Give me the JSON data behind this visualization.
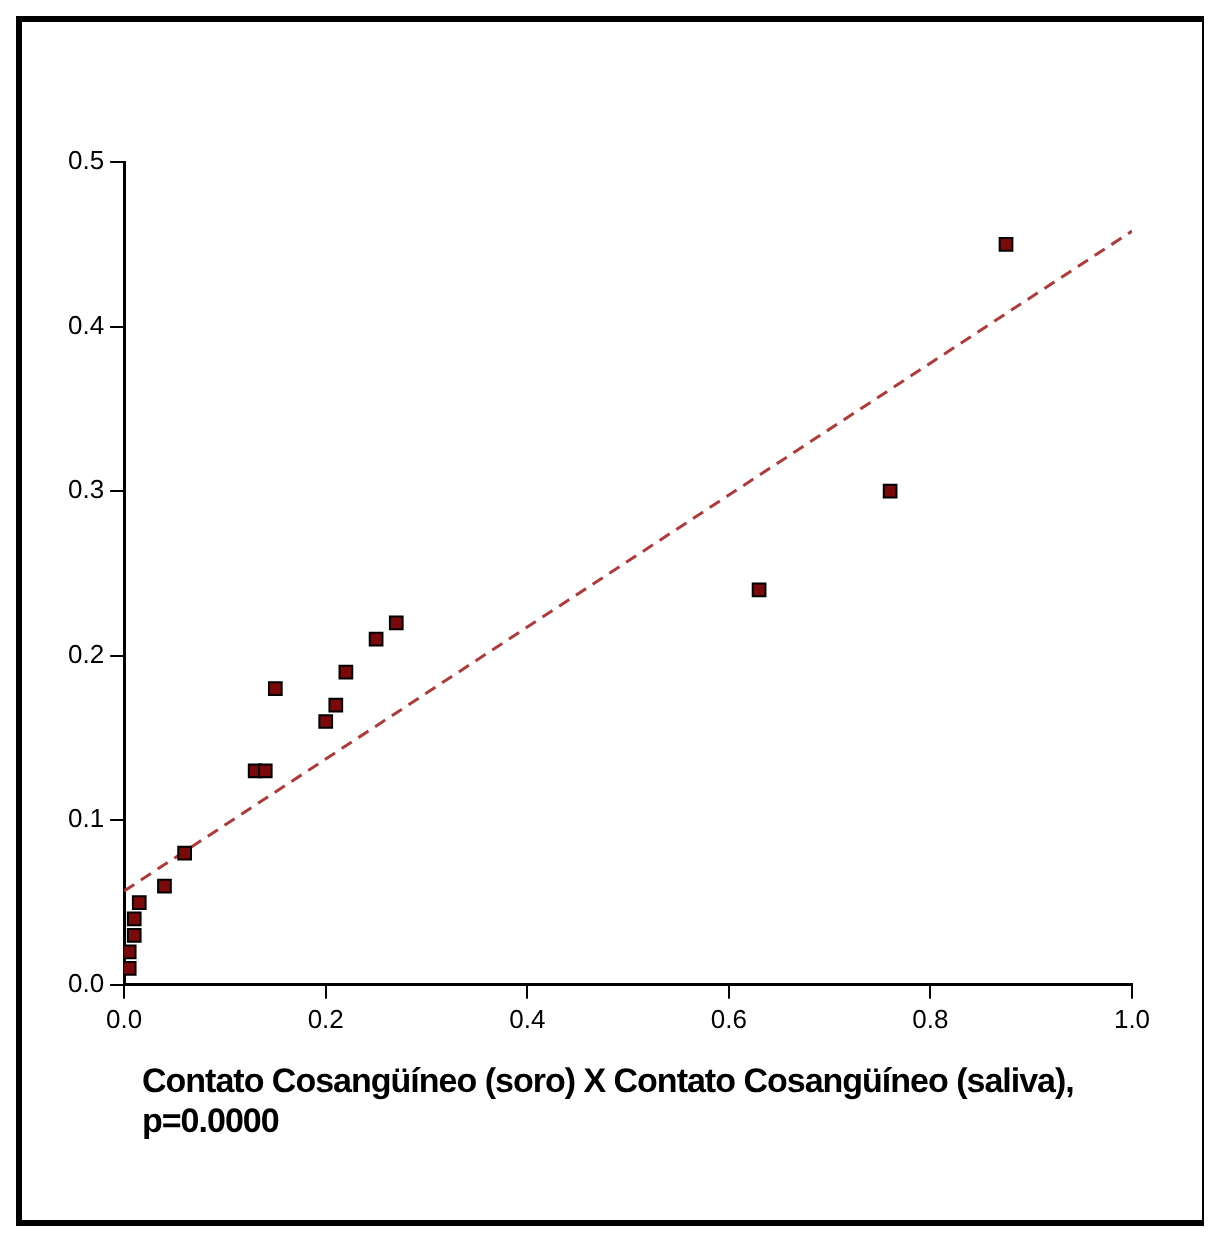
{
  "chart_data": {
    "type": "scatter",
    "xlabel": "Contato Cosangüíneo (soro) X Contato Cosangüíneo (saliva), p=0.0000",
    "marker": "square",
    "grid": false,
    "legend": false,
    "xlim": [
      0,
      1.0
    ],
    "xticks": [
      {
        "value": 0,
        "label": "0.0"
      },
      0.2,
      0.4,
      0.6,
      0.8,
      {
        "value": 1,
        "label": "1.0"
      }
    ],
    "ylim": [
      0,
      0.5
    ],
    "yticks": [
      {
        "value": 0,
        "label": "0.0"
      },
      0.1,
      0.2,
      0.3,
      0.4,
      0.5
    ],
    "series": [
      {
        "type": "scatter",
        "color": "#7a0a0a",
        "x": [
          0.005,
          0.005,
          0.01,
          0.01,
          0.015,
          0.04,
          0.06,
          0.13,
          0.14,
          0.15,
          0.2,
          0.21,
          0.22,
          0.25,
          0.27,
          0.63,
          0.76,
          0.875
        ],
        "values": [
          0.01,
          0.02,
          0.03,
          0.04,
          0.05,
          0.06,
          0.08,
          0.13,
          0.13,
          0.18,
          0.16,
          0.17,
          0.19,
          0.21,
          0.22,
          0.24,
          0.3,
          0.45
        ]
      },
      {
        "type": "line",
        "color": "#b03a3a",
        "line_style": "dashed",
        "marker": "none",
        "x": [
          0,
          1.0
        ],
        "values": [
          0.057,
          0.458
        ]
      }
    ]
  }
}
